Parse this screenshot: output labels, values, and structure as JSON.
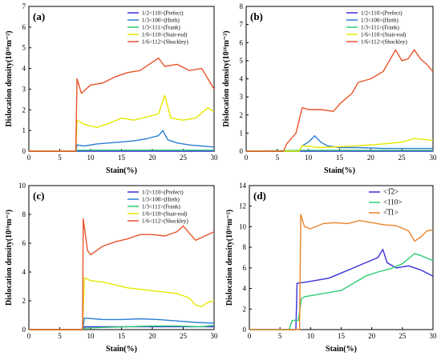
{
  "chart_data": [
    {
      "panel": "(a)",
      "type": "line",
      "xlabel": "Stain(%)",
      "ylabel": "Dislocation density(10¹⁶m⁻²)",
      "xlim": [
        0,
        30
      ],
      "ylim": [
        0,
        7
      ],
      "xticks": [
        0,
        5,
        10,
        15,
        20,
        25,
        30
      ],
      "yticks": [
        0,
        1,
        2,
        3,
        4,
        5,
        6,
        7
      ],
      "legend": "top-right",
      "series": [
        {
          "name": "1/2<110>(Prefect)",
          "color": "#3b2fd9",
          "x": [
            0,
            7.6,
            7.8,
            30
          ],
          "y": [
            0,
            0,
            0,
            0
          ]
        },
        {
          "name": "1/3<100>(Hirth)",
          "color": "#2b7fd4",
          "x": [
            0,
            7.6,
            7.8,
            9,
            11,
            13,
            15,
            17,
            19,
            21,
            21.7,
            22.5,
            24,
            26,
            28,
            30
          ],
          "y": [
            0,
            0,
            0.3,
            0.25,
            0.35,
            0.4,
            0.45,
            0.5,
            0.6,
            0.75,
            1.0,
            0.55,
            0.4,
            0.3,
            0.25,
            0.2
          ]
        },
        {
          "name": "1/3<111>(Frank)",
          "color": "#2ecc71",
          "x": [
            0,
            7.6,
            7.8,
            30
          ],
          "y": [
            0,
            0,
            0.05,
            0.05
          ]
        },
        {
          "name": "1/6<110>(Stair-rod)",
          "color": "#e6e600",
          "x": [
            0,
            7.6,
            7.8,
            9,
            11,
            13,
            15,
            17,
            19,
            21,
            22,
            23,
            25,
            27,
            29,
            30
          ],
          "y": [
            0,
            0,
            1.5,
            1.3,
            1.15,
            1.35,
            1.6,
            1.5,
            1.65,
            1.8,
            2.7,
            1.6,
            1.5,
            1.6,
            2.1,
            1.9
          ]
        },
        {
          "name": "1/6<112>(Shockley)",
          "color": "#e8542a",
          "x": [
            0,
            7.6,
            7.8,
            8.5,
            10,
            12,
            14,
            16,
            18,
            20,
            21,
            22,
            24,
            26,
            28,
            29,
            30
          ],
          "y": [
            0,
            0,
            3.5,
            2.8,
            3.2,
            3.3,
            3.6,
            3.8,
            3.9,
            4.3,
            4.5,
            4.1,
            4.2,
            3.9,
            4.0,
            3.5,
            3.0
          ]
        }
      ]
    },
    {
      "panel": "(b)",
      "type": "line",
      "xlabel": "Stain(%)",
      "ylabel": "Dislocation density(10¹⁶m⁻²)",
      "xlim": [
        0,
        30
      ],
      "ylim": [
        0,
        8
      ],
      "xticks": [
        0,
        5,
        10,
        15,
        20,
        25,
        30
      ],
      "yticks": [
        0,
        1,
        2,
        3,
        4,
        5,
        6,
        7,
        8
      ],
      "legend": "top-right",
      "series": [
        {
          "name": "1/2<110>(Prefect)",
          "color": "#3b2fd9",
          "x": [
            0,
            6,
            30
          ],
          "y": [
            0,
            0,
            0
          ]
        },
        {
          "name": "1/3<100>(Hirth)",
          "color": "#2b7fd4",
          "x": [
            0,
            8.5,
            9,
            10,
            11,
            12,
            13,
            15,
            18,
            22,
            26,
            30
          ],
          "y": [
            0,
            0,
            0.3,
            0.5,
            0.85,
            0.5,
            0.3,
            0.2,
            0.2,
            0.15,
            0.15,
            0.15
          ]
        },
        {
          "name": "1/3<111>(Frank)",
          "color": "#2ecc71",
          "x": [
            0,
            9,
            30
          ],
          "y": [
            0,
            0.05,
            0.05
          ]
        },
        {
          "name": "1/6<110>(Stair-rod)",
          "color": "#e6e600",
          "x": [
            0,
            8.5,
            9,
            12,
            15,
            18,
            22,
            25,
            27,
            30
          ],
          "y": [
            0,
            0,
            0.3,
            0.2,
            0.25,
            0.3,
            0.4,
            0.5,
            0.7,
            0.6
          ]
        },
        {
          "name": "1/6<112>(Shockley)",
          "color": "#e8542a",
          "x": [
            0,
            6,
            6.5,
            8,
            9,
            10,
            12,
            14,
            15,
            17,
            18,
            20,
            22,
            24,
            25,
            26,
            27,
            28,
            29,
            30
          ],
          "y": [
            0,
            0,
            0.4,
            1.0,
            2.4,
            2.3,
            2.3,
            2.2,
            2.6,
            3.2,
            3.8,
            4.0,
            4.4,
            5.6,
            5.0,
            5.1,
            5.6,
            5.1,
            4.8,
            4.4
          ]
        }
      ]
    },
    {
      "panel": "(c)",
      "type": "line",
      "xlabel": "Stain(%)",
      "ylabel": "Dislocation density(10¹⁶m⁻²)",
      "xlim": [
        0,
        30
      ],
      "ylim": [
        0,
        10
      ],
      "xticks": [
        0,
        5,
        10,
        15,
        20,
        25,
        30
      ],
      "yticks": [
        0,
        2,
        4,
        6,
        8,
        10
      ],
      "legend": "top-right",
      "series": [
        {
          "name": "1/2<110>(Prefect)",
          "color": "#3b2fd9",
          "x": [
            0,
            8.7,
            9,
            30
          ],
          "y": [
            0,
            0,
            0.2,
            0.2
          ]
        },
        {
          "name": "1/3<100>(Hirth)",
          "color": "#2b7fd4",
          "x": [
            0,
            8.7,
            9,
            12,
            15,
            18,
            21,
            24,
            27,
            30
          ],
          "y": [
            0,
            0,
            0.8,
            0.7,
            0.7,
            0.75,
            0.7,
            0.6,
            0.5,
            0.45
          ]
        },
        {
          "name": "1/3<111>(Frank)",
          "color": "#2ecc71",
          "x": [
            0,
            8.7,
            9,
            12,
            16,
            20,
            24,
            28,
            30
          ],
          "y": [
            0,
            0,
            0.1,
            0.15,
            0.2,
            0.25,
            0.25,
            0.2,
            0.3
          ]
        },
        {
          "name": "1/6<110>(Stair-rod)",
          "color": "#e6e600",
          "x": [
            0,
            8.7,
            9,
            10,
            12,
            14,
            16,
            18,
            20,
            22,
            24,
            26,
            27,
            28,
            29,
            30
          ],
          "y": [
            0,
            0,
            3.6,
            3.4,
            3.3,
            3.1,
            2.9,
            2.8,
            2.7,
            2.6,
            2.5,
            2.2,
            1.7,
            1.6,
            1.9,
            2.0
          ]
        },
        {
          "name": "1/6<112>(Shockley)",
          "color": "#e8542a",
          "x": [
            0,
            8.7,
            8.8,
            9.5,
            10,
            12,
            14,
            16,
            18,
            20,
            22,
            24,
            25,
            27,
            29,
            30
          ],
          "y": [
            0,
            0,
            7.7,
            5.5,
            5.2,
            5.8,
            6.1,
            6.3,
            6.6,
            6.6,
            6.5,
            6.8,
            7.2,
            6.2,
            6.6,
            6.8
          ]
        }
      ]
    },
    {
      "panel": "(d)",
      "type": "line",
      "xlabel": "Stain(%)",
      "ylabel": "Dislocation density(10¹⁶m⁻²)",
      "xlim": [
        0,
        30
      ],
      "ylim": [
        0,
        14
      ],
      "xticks": [
        0,
        5,
        10,
        15,
        20,
        25,
        30
      ],
      "yticks": [
        0,
        2,
        4,
        6,
        8,
        10,
        12,
        14
      ],
      "legend": "top-right",
      "series": [
        {
          "name": "<1̅2>",
          "color": "#3b2fd9",
          "x": [
            0,
            7.6,
            7.8,
            9,
            11,
            13,
            15,
            17,
            19,
            21,
            21.8,
            22.5,
            24,
            26,
            28,
            30
          ],
          "y": [
            0,
            0,
            4.5,
            4.6,
            4.8,
            5.0,
            5.5,
            6.0,
            6.5,
            7.0,
            7.8,
            6.5,
            6.0,
            6.2,
            5.8,
            5.2
          ]
        },
        {
          "name": "<110>",
          "color": "#2ecc71",
          "x": [
            0,
            6.5,
            7,
            8,
            8.5,
            9,
            11,
            13,
            15,
            17,
            19,
            21,
            23,
            25,
            27,
            28,
            30
          ],
          "y": [
            0,
            0,
            0.9,
            0.9,
            3.0,
            3.2,
            3.4,
            3.6,
            3.8,
            4.5,
            5.2,
            5.6,
            5.9,
            6.4,
            7.4,
            7.2,
            6.7
          ]
        },
        {
          "name": "<̅1̅1>",
          "color": "#e8842a",
          "x": [
            0,
            8.2,
            8.4,
            9,
            10,
            12,
            14,
            16,
            18,
            20,
            22,
            24,
            26,
            27,
            28,
            29,
            30
          ],
          "y": [
            0,
            0,
            11.2,
            10.0,
            9.8,
            10.3,
            10.4,
            10.3,
            10.6,
            10.4,
            10.2,
            10.1,
            9.6,
            8.6,
            9.0,
            9.6,
            9.7
          ]
        }
      ]
    }
  ]
}
